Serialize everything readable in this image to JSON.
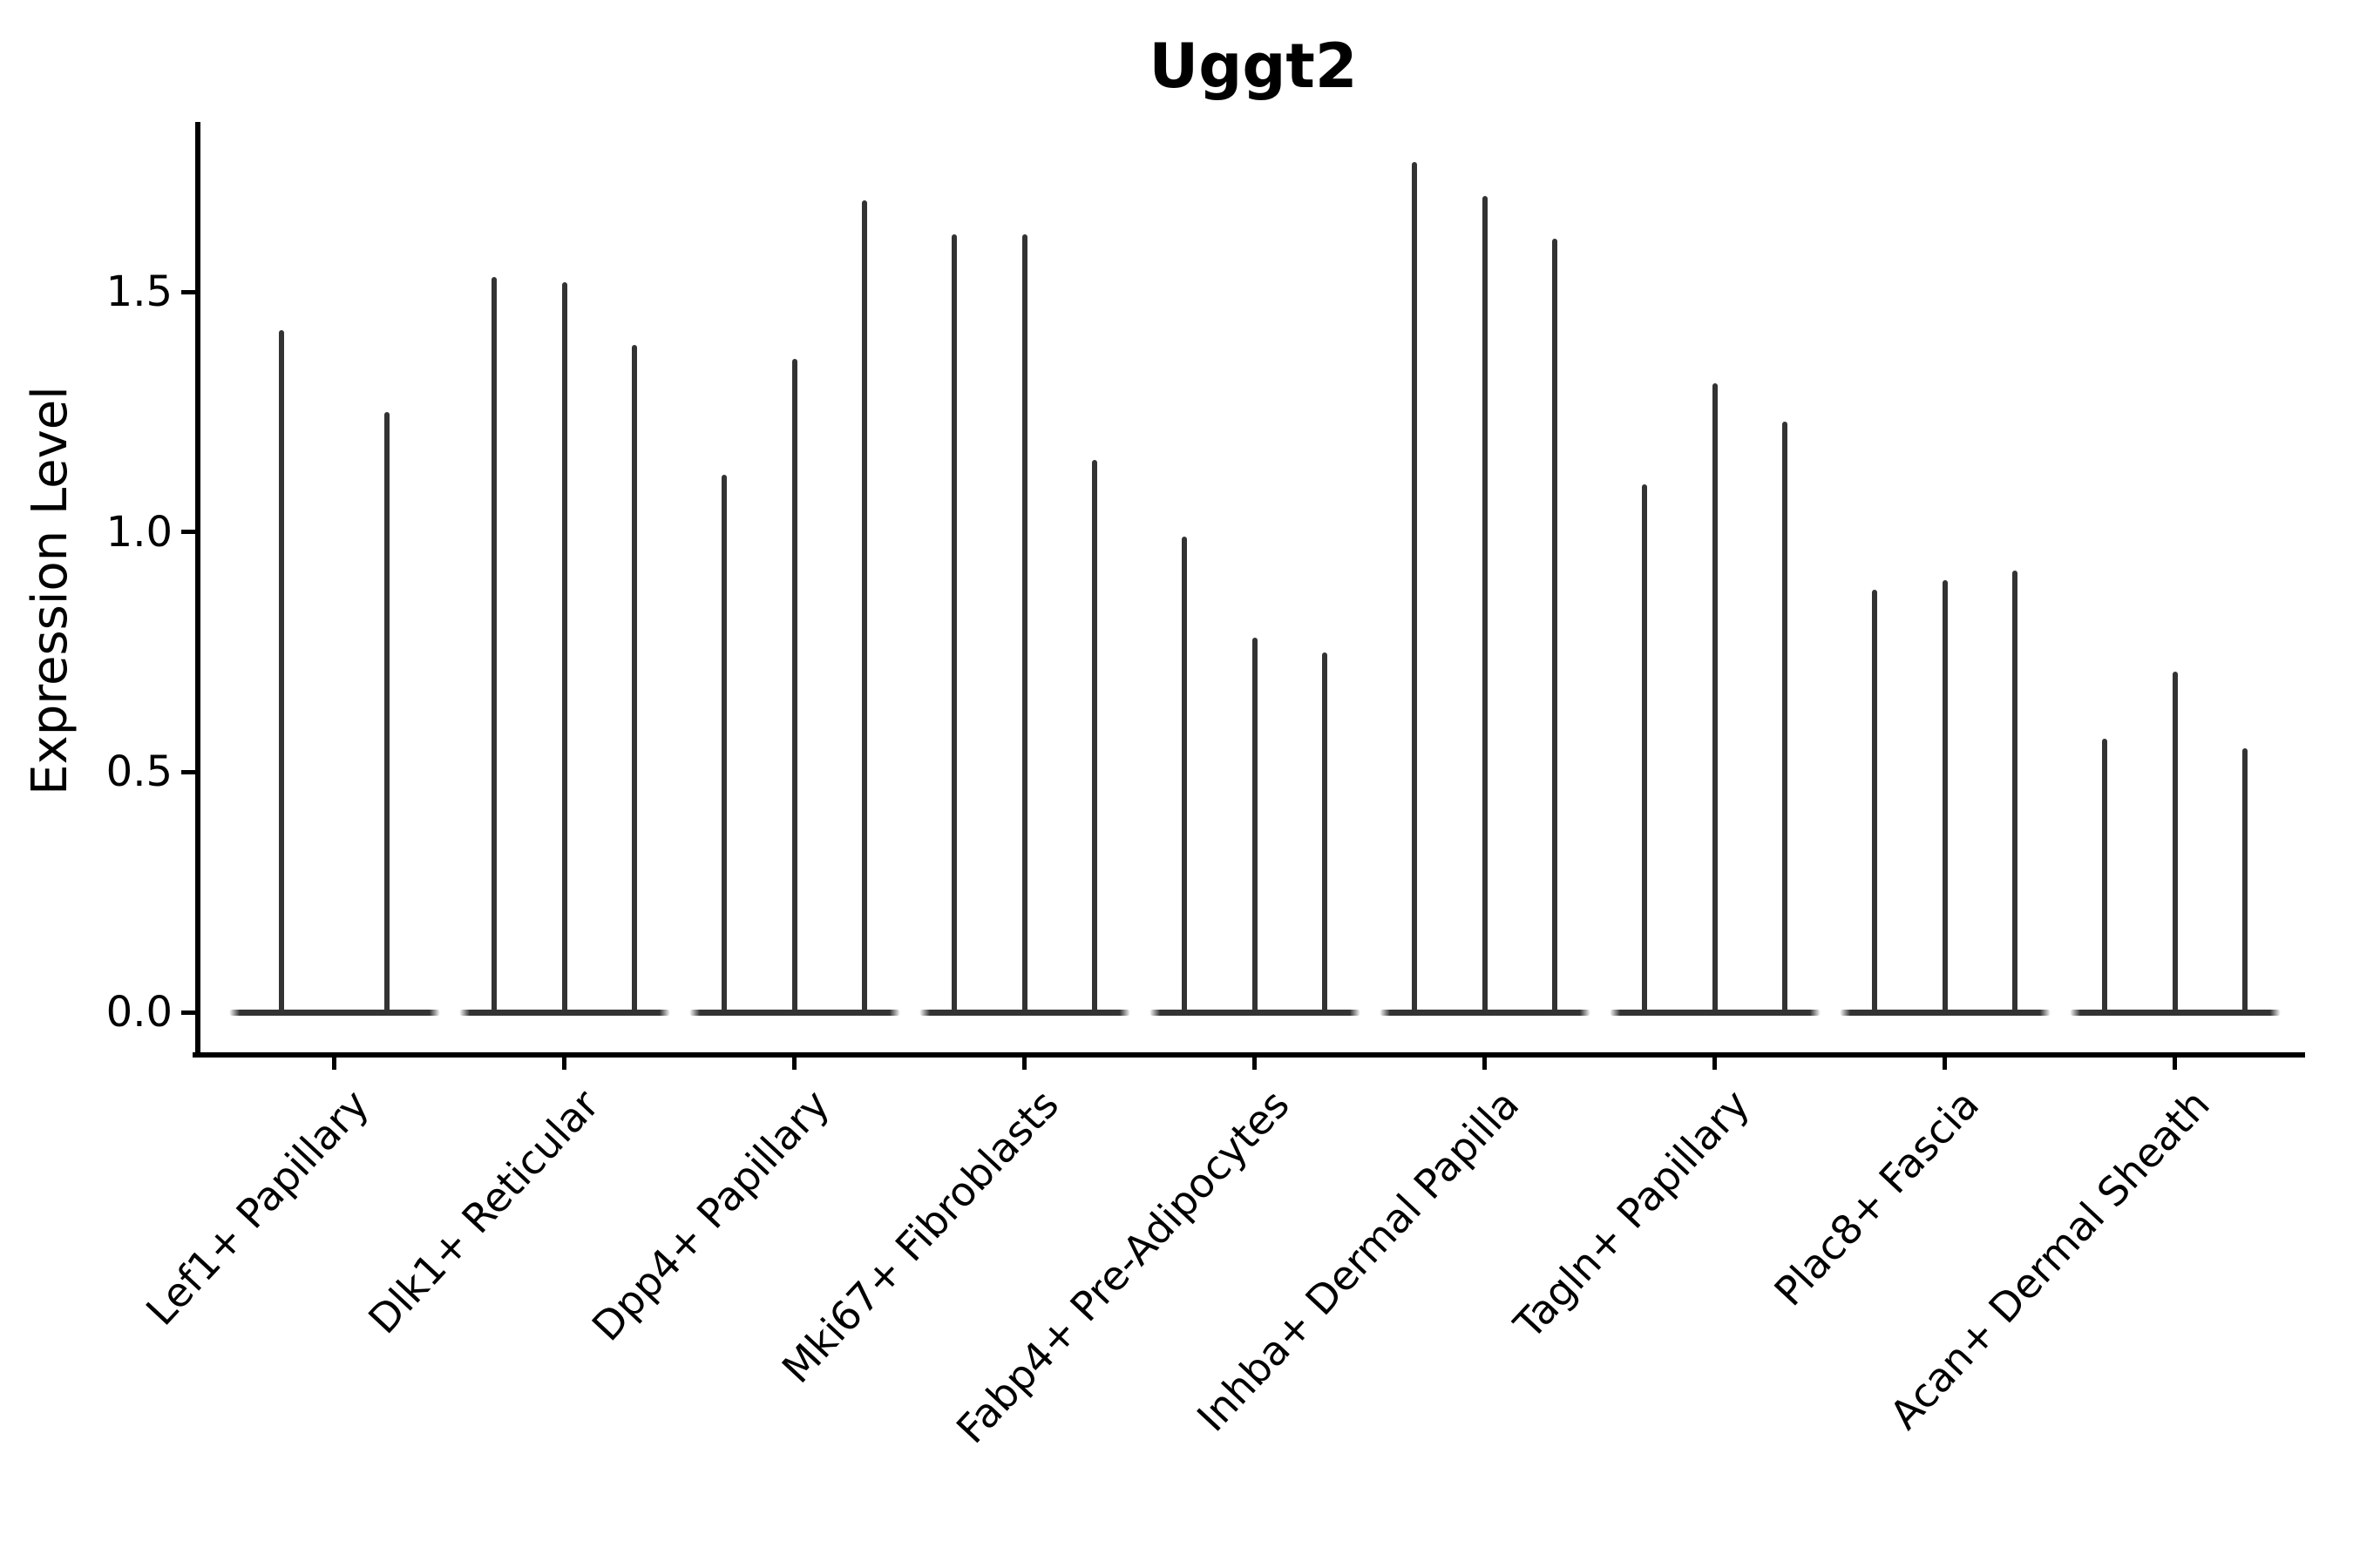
{
  "figure": {
    "title": "Uggt2",
    "background_color": "#ffffff",
    "text_color": "#000000",
    "violin_color": "#333333",
    "spine_color": "#000000"
  },
  "chart_data": {
    "type": "violin",
    "title": "Uggt2",
    "xlabel": "",
    "ylabel": "Expression Level",
    "ylim": [
      0,
      1.85
    ],
    "yticks": [
      0.0,
      0.5,
      1.0,
      1.5
    ],
    "ytick_labels": [
      "0.0",
      "0.5",
      "1.0",
      "1.5"
    ],
    "grid": false,
    "legend": "none",
    "description": "Violin plot of Uggt2 expression; each cell-type category contains narrow violins (wide base at 0 with a thin spike up to the maximum expression value).",
    "categories": [
      "Lef1+ Papillary",
      "Dlk1+ Reticular",
      "Dpp4+ Papillary",
      "Mki67+ Fibroblasts",
      "Fabp4+ Pre-Adipocytes",
      "Inhba+ Dermal Papilla",
      "Tagln+ Papillary",
      "Plac8+ Fascia",
      "Acan+ Dermal Sheath"
    ],
    "groups": [
      {
        "category": "Lef1+ Papillary",
        "violin_max_values": [
          1.42,
          1.25
        ]
      },
      {
        "category": "Dlk1+ Reticular",
        "violin_max_values": [
          1.53,
          1.52,
          1.39
        ]
      },
      {
        "category": "Dpp4+ Papillary",
        "violin_max_values": [
          1.12,
          1.36,
          1.69
        ]
      },
      {
        "category": "Mki67+ Fibroblasts",
        "violin_max_values": [
          1.62,
          1.62,
          1.15
        ]
      },
      {
        "category": "Fabp4+ Pre-Adipocytes",
        "violin_max_values": [
          0.99,
          0.78,
          0.75
        ]
      },
      {
        "category": "Inhba+ Dermal Papilla",
        "violin_max_values": [
          1.77,
          1.7,
          1.61
        ]
      },
      {
        "category": "Tagln+ Papillary",
        "violin_max_values": [
          1.1,
          1.31,
          1.23
        ]
      },
      {
        "category": "Plac8+ Fascia",
        "violin_max_values": [
          0.88,
          0.9,
          0.92
        ]
      },
      {
        "category": "Acan+ Dermal Sheath",
        "violin_max_values": [
          0.57,
          0.71,
          0.55
        ]
      }
    ]
  }
}
